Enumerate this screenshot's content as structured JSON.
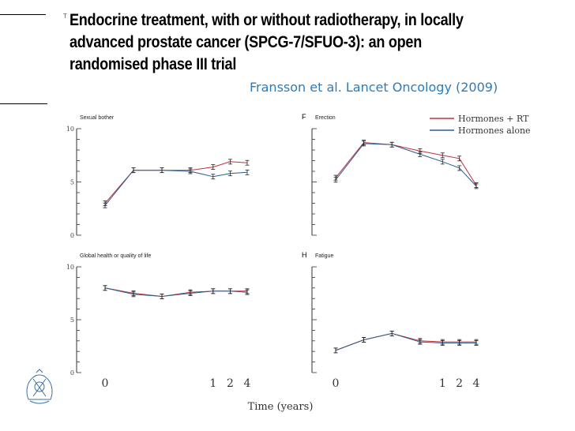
{
  "slide": {
    "title": "Endocrine treatment, with or without radiotherapy, in locally advanced prostate cancer (SPCG-7/SFUO-3): an open randomised phase III trial",
    "title_marker": "T",
    "citation": "Fransson et al.  Lancet Oncology (2009)"
  },
  "chart_data": [
    {
      "type": "line",
      "panel_letter": "",
      "title": "Sexual bother",
      "ylim": [
        0,
        10
      ],
      "yticks": [
        "10",
        "5",
        "0"
      ],
      "x_categories": [
        "0",
        "",
        "",
        "",
        "1",
        "2",
        "4"
      ],
      "series": [
        {
          "name": "Hormones + RT",
          "color": "#c0303c",
          "values": [
            3.0,
            6.1,
            6.1,
            6.1,
            6.4,
            6.9,
            6.8
          ]
        },
        {
          "name": "Hormones alone",
          "color": "#2a5d8f",
          "values": [
            2.8,
            6.1,
            6.1,
            6.0,
            5.5,
            5.8,
            5.9
          ]
        }
      ]
    },
    {
      "type": "line",
      "panel_letter": "F",
      "title": "Erection",
      "ylim": [
        0,
        10
      ],
      "yticks": [
        "",
        "",
        ""
      ],
      "x_categories": [
        "0",
        "",
        "",
        "",
        "1",
        "2",
        "4"
      ],
      "series": [
        {
          "name": "Hormones + RT",
          "color": "#c0303c",
          "values": [
            5.4,
            8.7,
            8.5,
            7.9,
            7.5,
            7.2,
            4.7
          ]
        },
        {
          "name": "Hormones alone",
          "color": "#2a5d8f",
          "values": [
            5.2,
            8.6,
            8.5,
            7.6,
            6.9,
            6.3,
            4.6
          ]
        }
      ]
    },
    {
      "type": "line",
      "panel_letter": "",
      "title": "Global health or quality of life",
      "ylim": [
        0,
        10
      ],
      "yticks": [
        "10",
        "5",
        "0"
      ],
      "x_categories": [
        "0",
        "",
        "",
        "",
        "1",
        "2",
        "4"
      ],
      "series": [
        {
          "name": "Hormones + RT",
          "color": "#c0303c",
          "values": [
            8.0,
            7.5,
            7.2,
            7.6,
            7.7,
            7.7,
            7.7
          ]
        },
        {
          "name": "Hormones alone",
          "color": "#2a5d8f",
          "values": [
            8.0,
            7.4,
            7.2,
            7.5,
            7.7,
            7.7,
            7.6
          ]
        }
      ]
    },
    {
      "type": "line",
      "panel_letter": "H",
      "title": "Fatigue",
      "ylim": [
        0,
        10
      ],
      "yticks": [
        "",
        "",
        ""
      ],
      "x_categories": [
        "0",
        "",
        "",
        "",
        "1",
        "2",
        "4"
      ],
      "series": [
        {
          "name": "Hormones + RT",
          "color": "#c0303c",
          "values": [
            2.1,
            3.1,
            3.7,
            3.0,
            2.9,
            2.9,
            2.9
          ]
        },
        {
          "name": "Hormones alone",
          "color": "#2a5d8f",
          "values": [
            2.1,
            3.1,
            3.7,
            2.9,
            2.8,
            2.8,
            2.8
          ]
        }
      ]
    }
  ],
  "legend": [
    {
      "label": "Hormones + RT",
      "color": "#c0303c"
    },
    {
      "label": "Hormones alone",
      "color": "#2a5d8f"
    }
  ],
  "shared_xlabel": "Time (years)"
}
